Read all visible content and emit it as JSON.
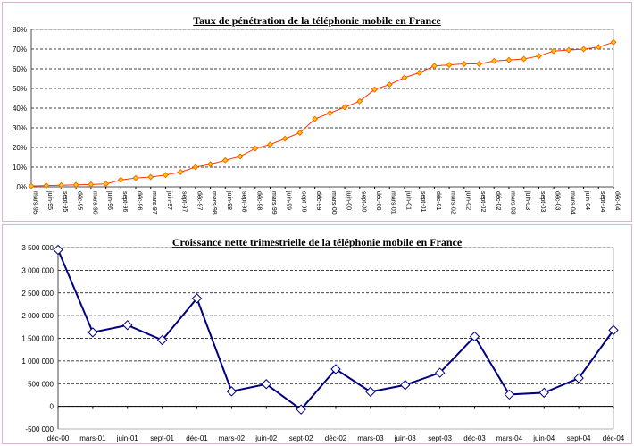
{
  "chart_data": [
    {
      "type": "line",
      "title": "Taux de pénétration de la téléphonie mobile en France",
      "xlabel": "",
      "ylabel": "",
      "ylim": [
        0,
        80
      ],
      "y_ticks": [
        "0%",
        "10%",
        "20%",
        "30%",
        "40%",
        "50%",
        "60%",
        "70%",
        "80%"
      ],
      "y_unit": "percent",
      "grid": "horizontal dashed",
      "legend": "none",
      "colors": {
        "line": "#ff3300",
        "marker_fill": "#ffcc00",
        "marker_edge": "#ff6600"
      },
      "categories": [
        "mars-95",
        "juin-95",
        "sept-95",
        "déc-95",
        "mars-96",
        "juin-96",
        "sept-96",
        "déc-96",
        "mars-97",
        "juin-97",
        "sept-97",
        "déc-97",
        "mars-98",
        "juin-98",
        "sept-98",
        "déc-98",
        "mars-99",
        "juin-99",
        "sept-99",
        "déc-99",
        "mars-00",
        "juin-00",
        "sept-00",
        "déc-00",
        "mars-01",
        "juin-01",
        "sept-01",
        "déc-01",
        "mars-02",
        "juin-02",
        "sept-02",
        "déc-02",
        "mars-03",
        "juin-03",
        "sept-03",
        "déc-03",
        "mars-04",
        "juin-04",
        "sept-04",
        "déc-04"
      ],
      "values": [
        0.4,
        0.6,
        0.8,
        1.0,
        1.2,
        1.5,
        3.5,
        4.5,
        5.0,
        6.0,
        7.5,
        10.0,
        11.5,
        13.5,
        15.5,
        19.5,
        21.5,
        24.5,
        27.5,
        34.5,
        37.5,
        40.5,
        43.5,
        49.5,
        52.0,
        55.5,
        58.0,
        61.5,
        62.0,
        62.5,
        62.5,
        64.0,
        64.5,
        65.0,
        66.5,
        69.0,
        69.5,
        70.0,
        71.0,
        73.5
      ]
    },
    {
      "type": "line",
      "title": "Croissance nette trimestrielle de la téléphonie mobile en France",
      "xlabel": "",
      "ylabel": "",
      "ylim": [
        -500000,
        3500000
      ],
      "y_ticks": [
        "-500 000",
        "0",
        "500 000",
        "1 000 000",
        "1 500 000",
        "2 000 000",
        "2 500 000",
        "3 000 000",
        "3 500 000"
      ],
      "grid": "horizontal dashed",
      "legend": "none",
      "colors": {
        "line": "#000080",
        "marker_fill": "#ffffff",
        "marker_edge": "#000080"
      },
      "categories": [
        "déc-00",
        "mars-01",
        "juin-01",
        "sept-01",
        "déc-01",
        "mars-02",
        "juin-02",
        "sept-02",
        "déc-02",
        "mars-03",
        "juin-03",
        "sept-03",
        "déc-03",
        "mars-04",
        "juin-04",
        "sept-04",
        "déc-04"
      ],
      "values": [
        3450000,
        1630000,
        1790000,
        1460000,
        2380000,
        330000,
        490000,
        -70000,
        820000,
        320000,
        470000,
        740000,
        1540000,
        260000,
        300000,
        620000,
        1680000
      ]
    }
  ]
}
